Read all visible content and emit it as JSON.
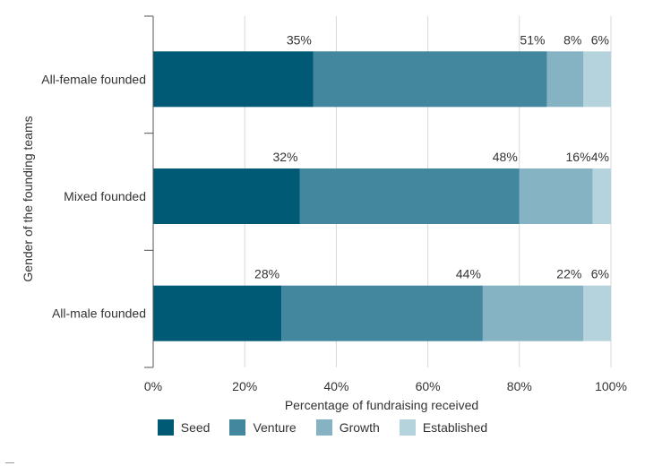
{
  "chart_data": {
    "type": "bar",
    "orientation": "horizontal",
    "stacked": true,
    "categories": [
      "All-female founded",
      "Mixed founded",
      "All-male founded"
    ],
    "series": [
      {
        "name": "Seed",
        "values": [
          35,
          32,
          28
        ],
        "color": "#005a76"
      },
      {
        "name": "Venture",
        "values": [
          51,
          48,
          44
        ],
        "color": "#43879e"
      },
      {
        "name": "Growth",
        "values": [
          8,
          16,
          22
        ],
        "color": "#86b3c3"
      },
      {
        "name": "Established",
        "values": [
          6,
          4,
          6
        ],
        "color": "#b5d3dc"
      }
    ],
    "data_labels": [
      [
        "35%",
        "51%",
        "8%",
        "6%"
      ],
      [
        "32%",
        "48%",
        "16%",
        "4%"
      ],
      [
        "28%",
        "44%",
        "22%",
        "6%"
      ]
    ],
    "xlabel": "Percentage of fundraising received",
    "ylabel": "Gender of the founding teams",
    "xlim": [
      0,
      100
    ],
    "xticks": [
      "0%",
      "20%",
      "40%",
      "60%",
      "80%",
      "100%"
    ],
    "grid": "vertical",
    "legend_position": "bottom"
  }
}
